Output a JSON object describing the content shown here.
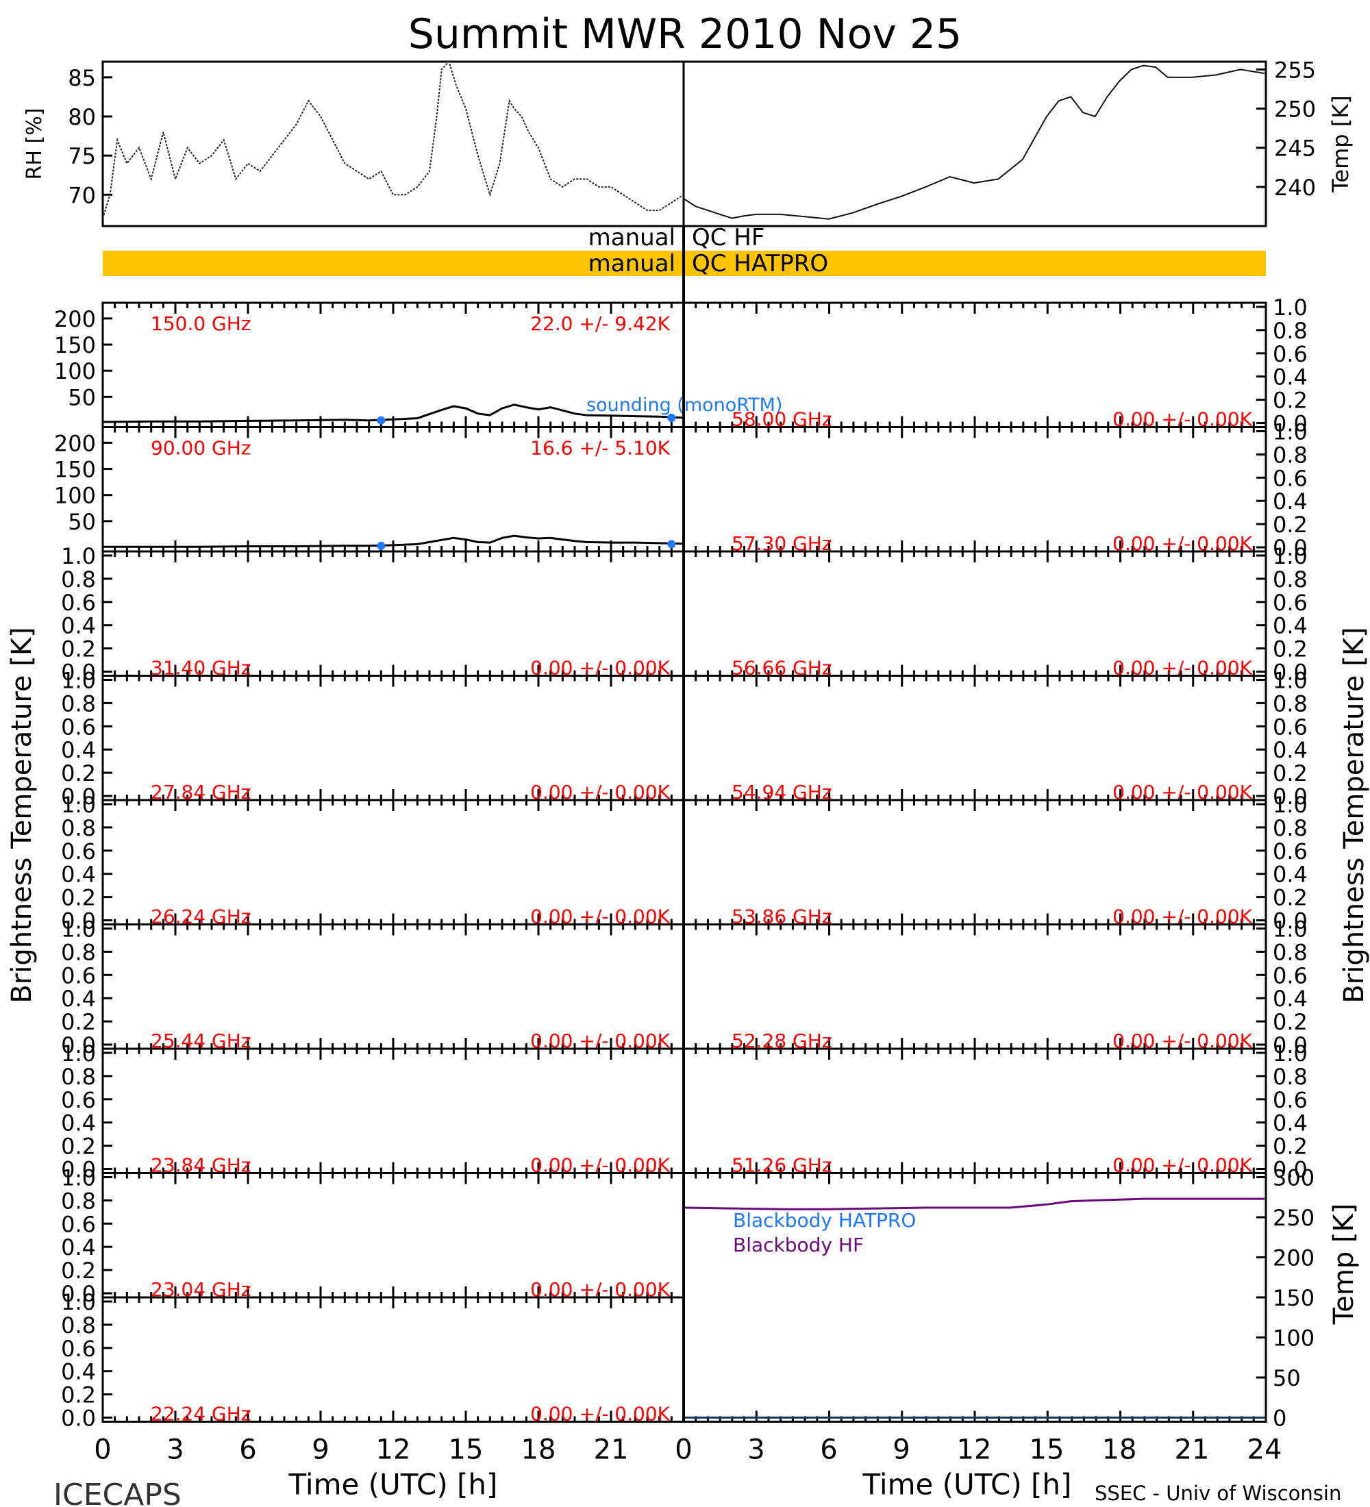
{
  "title": "Summit MWR 2010 Nov 25",
  "footer": {
    "left": "ICECAPS",
    "right": "SSEC - Univ of Wisconsin"
  },
  "xlabel": "Time (UTC) [h]",
  "x_ticks": [
    "0",
    "3",
    "6",
    "9",
    "12",
    "15",
    "18",
    "21"
  ],
  "x_ticks_right": [
    "0",
    "3",
    "6",
    "9",
    "12",
    "15",
    "18",
    "21",
    "24"
  ],
  "colors": {
    "axis": "#000000",
    "annotation": "#ff0000",
    "sounding": "#1e78ff",
    "hf": "#6a0a7a",
    "qc_bar": "#ffc400"
  },
  "met": {
    "rh": {
      "ylabel": "RH [%]",
      "ylim": [
        66,
        87
      ],
      "ticks": [
        "70",
        "75",
        "80",
        "85"
      ],
      "tick_values": [
        70,
        75,
        80,
        85
      ],
      "x": [
        0,
        0.3,
        0.6,
        1,
        1.5,
        2,
        2.5,
        3,
        3.5,
        4,
        4.5,
        5,
        5.5,
        6,
        6.5,
        7,
        7.5,
        8,
        8.5,
        9,
        9.5,
        10,
        10.5,
        11,
        11.5,
        12,
        12.5,
        13,
        13.5,
        13.8,
        14,
        14.3,
        14.6,
        15,
        15.5,
        16,
        16.4,
        16.8,
        17,
        17.3,
        17.6,
        18,
        18.5,
        19,
        19.5,
        20,
        20.5,
        21,
        21.5,
        22,
        22.5,
        23,
        23.5,
        24
      ],
      "y": [
        67,
        70,
        77,
        74,
        76,
        72,
        78,
        72,
        76,
        74,
        75,
        77,
        72,
        74,
        73,
        75,
        77,
        79,
        82,
        80,
        77,
        74,
        73,
        72,
        73,
        70,
        70,
        71,
        73,
        80,
        86,
        87,
        84,
        81,
        75,
        70,
        74,
        82,
        81,
        80,
        78,
        76,
        72,
        71,
        72,
        72,
        71,
        71,
        70,
        69,
        68,
        68,
        69,
        70
      ]
    },
    "temp": {
      "ylabel": "Temp [K]",
      "ylim": [
        235,
        256
      ],
      "ticks": [
        "240",
        "245",
        "250",
        "255"
      ],
      "tick_values": [
        240,
        245,
        250,
        255
      ],
      "x": [
        0,
        0.5,
        1,
        1.5,
        2,
        2.5,
        3,
        4,
        5,
        6,
        7,
        8,
        9,
        10,
        11,
        12,
        13,
        14,
        15,
        15.5,
        16,
        16.5,
        17,
        17.5,
        18,
        18.5,
        19,
        19.5,
        20,
        21,
        22,
        23,
        24
      ],
      "y": [
        238.5,
        237.5,
        237,
        236.5,
        236,
        236.3,
        236.5,
        236.5,
        236.2,
        235.9,
        236.7,
        237.8,
        238.8,
        240,
        241.3,
        240.5,
        241,
        243.5,
        249,
        251,
        251.5,
        249.5,
        249,
        251.5,
        253.5,
        255,
        255.5,
        255.3,
        254,
        254,
        254.3,
        255,
        254.5
      ]
    }
  },
  "qc": [
    {
      "left": "manual",
      "right": "QC HF",
      "bar": false
    },
    {
      "left": "manual",
      "right": "QC HATPRO",
      "bar": true
    }
  ],
  "brightness_label": "Brightness Temperature [K]",
  "bb_ylabel": "Temp [K]",
  "ticks_bt": [
    "200",
    "150",
    "100",
    "50"
  ],
  "ticks_bt_values": [
    200,
    150,
    100,
    50
  ],
  "ticks_unit": [
    "1.0",
    "0.8",
    "0.6",
    "0.4",
    "0.2",
    "0.0"
  ],
  "ticks_unit_values": [
    1.0,
    0.8,
    0.6,
    0.4,
    0.2,
    0.0
  ],
  "ticks_bb": [
    "300",
    "250",
    "200",
    "150",
    "100",
    "50",
    "0"
  ],
  "ticks_bb_values": [
    300,
    250,
    200,
    150,
    100,
    50,
    0
  ],
  "sounding_label": "sounding (monoRTM)",
  "chart_data": {
    "type": "line",
    "panels_left": [
      {
        "freq": "150.0 GHz",
        "stats": "22.0 +/- 9.42K",
        "ylim": [
          0,
          230
        ],
        "x": [
          0,
          2,
          4,
          6,
          8,
          10,
          11,
          12,
          13,
          14,
          14.5,
          15,
          15.5,
          16,
          16.5,
          17,
          17.5,
          18,
          18.5,
          19,
          19.5,
          20,
          21,
          22,
          23,
          24
        ],
        "y": [
          2,
          3,
          3,
          4,
          5,
          6,
          5,
          7,
          9,
          25,
          32,
          28,
          18,
          15,
          28,
          35,
          30,
          26,
          30,
          24,
          18,
          15,
          14,
          13,
          12,
          10
        ],
        "sounding": [
          {
            "x": 11.5,
            "y": 5
          },
          {
            "x": 23.5,
            "y": 10
          }
        ]
      },
      {
        "freq": "90.00 GHz",
        "stats": "16.6 +/- 5.10K",
        "ylim": [
          0,
          230
        ],
        "x": [
          0,
          2,
          4,
          6,
          8,
          10,
          11,
          12,
          13,
          14,
          14.5,
          15,
          15.5,
          16,
          16.5,
          17,
          17.5,
          18,
          18.5,
          19,
          19.5,
          20,
          21,
          22,
          23,
          24
        ],
        "y": [
          1,
          1,
          1,
          2,
          2,
          3,
          3,
          4,
          6,
          14,
          18,
          15,
          10,
          9,
          18,
          22,
          19,
          17,
          18,
          15,
          12,
          10,
          9,
          9,
          8,
          7
        ],
        "sounding": [
          {
            "x": 11.5,
            "y": 3
          },
          {
            "x": 23.5,
            "y": 6
          }
        ]
      },
      {
        "freq": "31.40 GHz",
        "stats": "0.00 +/- 0.00K"
      },
      {
        "freq": "27.84 GHz",
        "stats": "0.00 +/- 0.00K"
      },
      {
        "freq": "26.24 GHz",
        "stats": "0.00 +/- 0.00K"
      },
      {
        "freq": "25.44 GHz",
        "stats": "0.00 +/- 0.00K"
      },
      {
        "freq": "23.84 GHz",
        "stats": "0.00 +/- 0.00K"
      },
      {
        "freq": "23.04 GHz",
        "stats": "0.00 +/- 0.00K"
      },
      {
        "freq": "22.24 GHz",
        "stats": "0.00 +/- 0.00K"
      }
    ],
    "panels_right": [
      {
        "freq": "58.00 GHz",
        "stats": "0.00 +/- 0.00K"
      },
      {
        "freq": "57.30 GHz",
        "stats": "0.00 +/- 0.00K"
      },
      {
        "freq": "56.66 GHz",
        "stats": "0.00 +/- 0.00K"
      },
      {
        "freq": "54.94 GHz",
        "stats": "0.00 +/- 0.00K"
      },
      {
        "freq": "53.86 GHz",
        "stats": "0.00 +/- 0.00K"
      },
      {
        "freq": "52.28 GHz",
        "stats": "0.00 +/- 0.00K"
      },
      {
        "freq": "51.26 GHz",
        "stats": "0.00 +/- 0.00K"
      }
    ],
    "blackbody": {
      "ylim": [
        0,
        300
      ],
      "series": [
        {
          "name": "Blackbody HATPRO",
          "x": [
            0,
            24
          ],
          "y": [
            0,
            0
          ]
        },
        {
          "name": "Blackbody HF",
          "x": [
            0,
            2,
            4,
            6,
            8,
            10,
            12,
            13.5,
            15,
            16,
            17,
            18,
            19,
            20,
            22,
            24
          ],
          "y": [
            262,
            261,
            260,
            260,
            261,
            262,
            262,
            262,
            266,
            270,
            271,
            272,
            273,
            273,
            273,
            273
          ]
        }
      ]
    }
  }
}
